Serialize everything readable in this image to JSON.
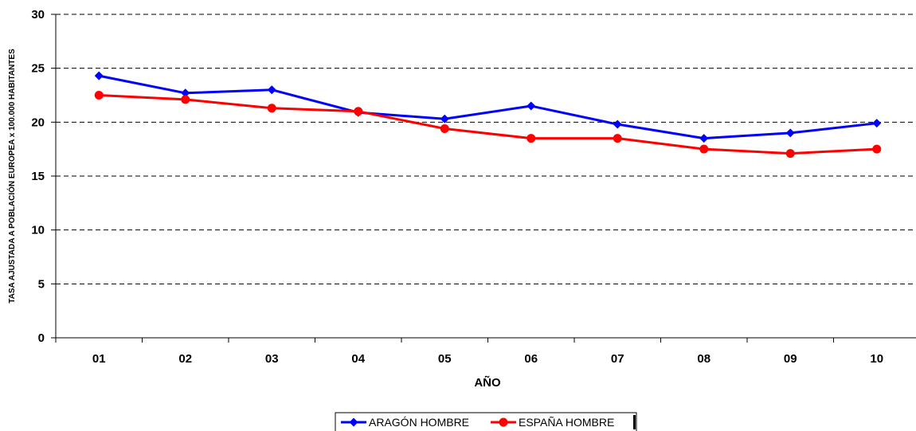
{
  "chart_data": {
    "type": "line",
    "title": "",
    "xlabel": "AÑO",
    "ylabel": "TASA AJUSTADA A POBLACIÓN EUROPEA x 100.000 HABITANTES",
    "categories": [
      "01",
      "02",
      "03",
      "04",
      "05",
      "06",
      "07",
      "08",
      "09",
      "10"
    ],
    "ylim": [
      0,
      30
    ],
    "yticks": [
      "0",
      "5",
      "10",
      "15",
      "20",
      "25",
      "30"
    ],
    "grid": "horizontal dashed",
    "legend_position": "bottom-center",
    "series": [
      {
        "name": "ARAGÓN HOMBRE",
        "color": "#0000ff",
        "marker": "diamond",
        "values": [
          24.3,
          22.7,
          23.0,
          20.9,
          20.3,
          21.5,
          19.8,
          18.5,
          19.0,
          19.9
        ]
      },
      {
        "name": "ESPAÑA HOMBRE",
        "color": "#ff0000",
        "marker": "circle",
        "values": [
          22.5,
          22.1,
          21.3,
          21.0,
          19.4,
          18.5,
          18.5,
          17.5,
          17.1,
          17.5
        ]
      }
    ]
  }
}
